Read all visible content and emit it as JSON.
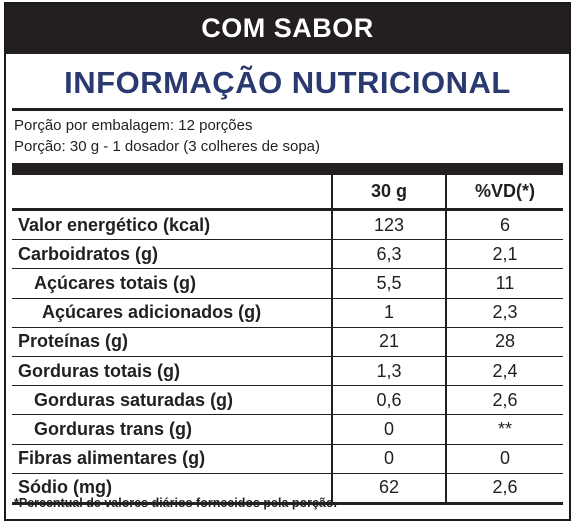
{
  "header": {
    "top_label": "COM SABOR",
    "title": "INFORMAÇÃO NUTRICIONAL"
  },
  "portion": {
    "line1": "Porção por embalagem: 12 porções",
    "line2": "Porção: 30 g - 1 dosador (3 colheres de sopa)"
  },
  "table": {
    "col_amount": "30 g",
    "col_vd": "%VD(*)",
    "rows": [
      {
        "label": "Valor energético (kcal)",
        "amount": "123",
        "vd": "6"
      },
      {
        "label": "Carboidratos (g)",
        "amount": "6,3",
        "vd": "2,1"
      },
      {
        "label": "Açúcares totais (g)",
        "amount": "5,5",
        "vd": "11"
      },
      {
        "label": "Açúcares adicionados (g)",
        "amount": "1",
        "vd": "2,3"
      },
      {
        "label": "Proteínas (g)",
        "amount": "21",
        "vd": "28"
      },
      {
        "label": "Gorduras totais (g)",
        "amount": "1,3",
        "vd": "2,4"
      },
      {
        "label": "Gorduras saturadas (g)",
        "amount": "0,6",
        "vd": "2,6"
      },
      {
        "label": "Gorduras trans (g)",
        "amount": "0",
        "vd": "**"
      },
      {
        "label": "Fibras alimentares (g)",
        "amount": "0",
        "vd": "0"
      },
      {
        "label": "Sódio (mg)",
        "amount": "62",
        "vd": "2,6"
      }
    ]
  },
  "footnote": "*Percentual de valores diários fornecidos pela porção."
}
